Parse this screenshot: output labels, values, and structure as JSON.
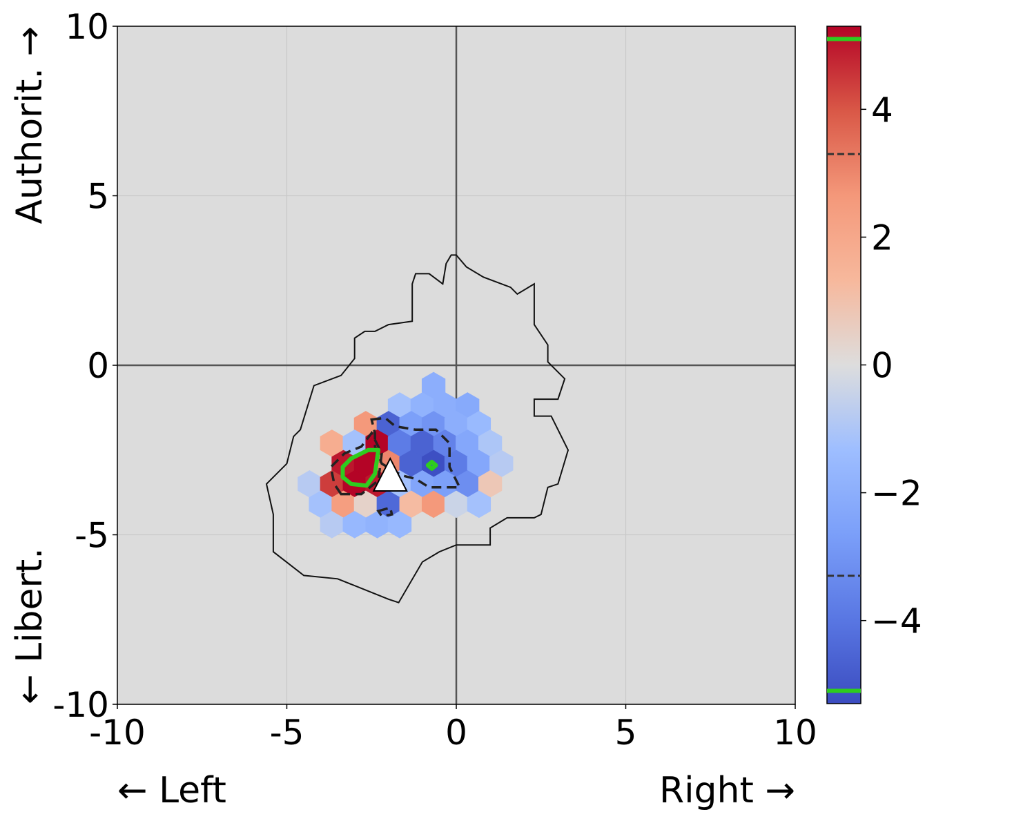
{
  "chart_data": {
    "type": "heatmap",
    "subtype": "hexbin",
    "xlim": [
      -10,
      10
    ],
    "ylim": [
      -10,
      10
    ],
    "x_ticks": [
      -10,
      -5,
      0,
      5,
      10
    ],
    "y_ticks": [
      -10,
      -5,
      0,
      5,
      10
    ],
    "x_tick_labels": [
      "-10",
      "-5",
      "0",
      "5",
      "10"
    ],
    "y_tick_labels": [
      "-10",
      "-5",
      "0",
      "5",
      "10"
    ],
    "x_label_left": "← Left",
    "x_label_right": "Right →",
    "y_label_top": "Authorit. →",
    "y_label_bottom": "← Libert.",
    "grid": true,
    "background_color": "#dcdcdc",
    "colormap": "coolwarm",
    "colorbar": {
      "range": [
        -5.3,
        5.3
      ],
      "ticks": [
        -4,
        -2,
        0,
        2,
        4
      ],
      "tick_labels": [
        "−4",
        "−2",
        "0",
        "2",
        "4"
      ],
      "dashed_levels": [
        -3.3,
        3.3
      ],
      "green_levels": [
        -5.1,
        5.1
      ]
    },
    "hexbins": [
      {
        "x": -0.67,
        "y": -0.6,
        "v": -2.0
      },
      {
        "x": -1.67,
        "y": -1.2,
        "v": -1.2
      },
      {
        "x": -1.0,
        "y": -1.2,
        "v": -1.8
      },
      {
        "x": -0.33,
        "y": -1.2,
        "v": -2.0
      },
      {
        "x": 0.33,
        "y": -1.2,
        "v": -2.2
      },
      {
        "x": -2.67,
        "y": -1.75,
        "v": 2.6
      },
      {
        "x": -2.0,
        "y": -1.75,
        "v": -4.6
      },
      {
        "x": -1.33,
        "y": -1.75,
        "v": -2.6
      },
      {
        "x": -0.67,
        "y": -1.75,
        "v": -3.0
      },
      {
        "x": 0.0,
        "y": -1.75,
        "v": -2.0
      },
      {
        "x": 0.67,
        "y": -1.75,
        "v": -1.5
      },
      {
        "x": -3.67,
        "y": -2.3,
        "v": 1.8
      },
      {
        "x": -3.0,
        "y": -2.3,
        "v": -1.2
      },
      {
        "x": -2.33,
        "y": -2.3,
        "v": 5.3
      },
      {
        "x": -1.67,
        "y": -2.3,
        "v": -3.8
      },
      {
        "x": -1.0,
        "y": -2.3,
        "v": -4.6
      },
      {
        "x": -0.33,
        "y": -2.3,
        "v": -3.6
      },
      {
        "x": 0.33,
        "y": -2.3,
        "v": -2.3
      },
      {
        "x": 1.0,
        "y": -2.3,
        "v": -1.0
      },
      {
        "x": -3.33,
        "y": -2.9,
        "v": 5.0
      },
      {
        "x": -2.67,
        "y": -2.9,
        "v": 5.3
      },
      {
        "x": -2.0,
        "y": -2.9,
        "v": 3.0
      },
      {
        "x": -1.33,
        "y": -2.9,
        "v": -4.6
      },
      {
        "x": -0.67,
        "y": -2.9,
        "v": -5.2
      },
      {
        "x": 0.0,
        "y": -2.9,
        "v": -3.8
      },
      {
        "x": 0.67,
        "y": -2.9,
        "v": -2.3
      },
      {
        "x": 1.33,
        "y": -2.9,
        "v": -0.8
      },
      {
        "x": -4.33,
        "y": -3.5,
        "v": -0.8
      },
      {
        "x": -3.67,
        "y": -3.5,
        "v": 4.4
      },
      {
        "x": -3.0,
        "y": -3.5,
        "v": 5.3
      },
      {
        "x": -2.33,
        "y": -3.5,
        "v": 5.0
      },
      {
        "x": -1.67,
        "y": -3.5,
        "v": -1.2
      },
      {
        "x": -1.0,
        "y": -3.5,
        "v": -2.4
      },
      {
        "x": -0.33,
        "y": -3.5,
        "v": -2.6
      },
      {
        "x": 0.33,
        "y": -3.5,
        "v": -3.2
      },
      {
        "x": 1.0,
        "y": -3.5,
        "v": 0.8
      },
      {
        "x": -4.0,
        "y": -4.1,
        "v": -1.2
      },
      {
        "x": -3.33,
        "y": -4.1,
        "v": 2.4
      },
      {
        "x": -2.67,
        "y": -4.1,
        "v": 0.4
      },
      {
        "x": -2.0,
        "y": -4.1,
        "v": -4.4
      },
      {
        "x": -1.33,
        "y": -4.1,
        "v": 1.2
      },
      {
        "x": -0.67,
        "y": -4.1,
        "v": 2.6
      },
      {
        "x": 0.0,
        "y": -4.1,
        "v": -0.4
      },
      {
        "x": 0.67,
        "y": -4.1,
        "v": -1.2
      },
      {
        "x": -3.67,
        "y": -4.7,
        "v": -0.8
      },
      {
        "x": -3.0,
        "y": -4.7,
        "v": -1.6
      },
      {
        "x": -2.33,
        "y": -4.7,
        "v": -1.8
      },
      {
        "x": -1.67,
        "y": -4.7,
        "v": -1.6
      }
    ],
    "outline": [
      [
        0,
        3.25
      ],
      [
        0.3,
        2.9
      ],
      [
        0.8,
        2.6
      ],
      [
        1.6,
        2.3
      ],
      [
        1.8,
        2.1
      ],
      [
        2.3,
        2.4
      ],
      [
        2.3,
        1.2
      ],
      [
        2.7,
        0.6
      ],
      [
        2.7,
        0.1
      ],
      [
        3.2,
        -0.4
      ],
      [
        3.0,
        -1.0
      ],
      [
        2.3,
        -1.0
      ],
      [
        2.3,
        -1.5
      ],
      [
        2.8,
        -1.5
      ],
      [
        3.3,
        -2.5
      ],
      [
        3.0,
        -3.5
      ],
      [
        2.7,
        -3.6
      ],
      [
        2.5,
        -4.4
      ],
      [
        2.3,
        -4.5
      ],
      [
        1.5,
        -4.5
      ],
      [
        1.0,
        -4.8
      ],
      [
        1.0,
        -5.3
      ],
      [
        0,
        -5.3
      ],
      [
        -0.5,
        -5.5
      ],
      [
        -1.0,
        -5.8
      ],
      [
        -1.7,
        -7.0
      ],
      [
        -2.0,
        -6.9
      ],
      [
        -3.5,
        -6.3
      ],
      [
        -4.5,
        -6.2
      ],
      [
        -5.4,
        -5.5
      ],
      [
        -5.4,
        -4.4
      ],
      [
        -5.6,
        -3.5
      ],
      [
        -5.0,
        -2.9
      ],
      [
        -4.8,
        -2.1
      ],
      [
        -4.6,
        -1.9
      ],
      [
        -4.2,
        -0.6
      ],
      [
        -3.4,
        -0.3
      ],
      [
        -3.0,
        0.2
      ],
      [
        -3.0,
        0.8
      ],
      [
        -2.7,
        1.0
      ],
      [
        -2.4,
        1.0
      ],
      [
        -2.0,
        1.2
      ],
      [
        -1.3,
        1.3
      ],
      [
        -1.3,
        2.4
      ],
      [
        -1.2,
        2.7
      ],
      [
        -0.8,
        2.7
      ],
      [
        -0.4,
        2.4
      ],
      [
        -0.3,
        3.0
      ],
      [
        -0.15,
        3.25
      ]
    ],
    "dashed_contours": [
      [
        [
          -2.5,
          -1.6
        ],
        [
          -2.1,
          -1.55
        ],
        [
          -1.8,
          -1.8
        ],
        [
          -1.2,
          -1.9
        ],
        [
          -0.6,
          -1.9
        ],
        [
          -0.2,
          -2.3
        ],
        [
          -0.2,
          -3.0
        ],
        [
          0.1,
          -3.6
        ],
        [
          -0.8,
          -3.6
        ],
        [
          -1.2,
          -3.35
        ],
        [
          -1.6,
          -3.25
        ],
        [
          -2.2,
          -2.9
        ],
        [
          -2.4,
          -2.4
        ],
        [
          -2.4,
          -2.0
        ]
      ],
      [
        [
          -3.4,
          -3.8
        ],
        [
          -3.6,
          -3.5
        ],
        [
          -3.7,
          -3.0
        ],
        [
          -3.3,
          -2.6
        ],
        [
          -2.8,
          -2.4
        ],
        [
          -2.5,
          -2.0
        ],
        [
          -2.2,
          -2.6
        ],
        [
          -2.3,
          -3.4
        ],
        [
          -2.8,
          -3.8
        ]
      ],
      [
        [
          -2.3,
          -4.3
        ],
        [
          -1.95,
          -4.2
        ],
        [
          -1.9,
          -4.4
        ],
        [
          -2.2,
          -4.45
        ]
      ]
    ],
    "green_contours": [
      [
        [
          -3.35,
          -3.0
        ],
        [
          -3.1,
          -2.75
        ],
        [
          -2.6,
          -2.5
        ],
        [
          -2.3,
          -2.5
        ],
        [
          -2.4,
          -3.2
        ],
        [
          -2.65,
          -3.55
        ],
        [
          -3.1,
          -3.5
        ],
        [
          -3.35,
          -3.3
        ]
      ],
      [
        [
          -0.72,
          -2.85
        ],
        [
          -0.6,
          -2.95
        ],
        [
          -0.72,
          -3.05
        ],
        [
          -0.84,
          -2.95
        ]
      ]
    ],
    "marker": {
      "shape": "triangle",
      "x": -1.95,
      "y": -3.3,
      "fill": "#ffffff"
    }
  }
}
